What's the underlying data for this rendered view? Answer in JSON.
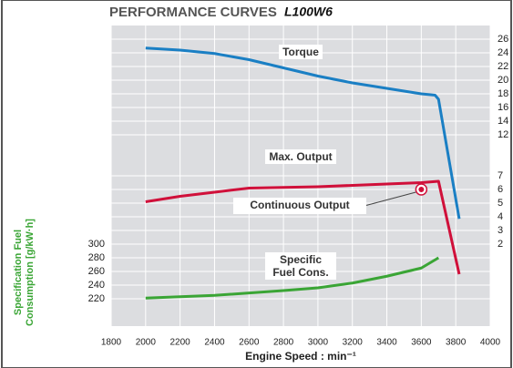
{
  "chart_data": {
    "type": "line",
    "title": "PERFORMANCE CURVES",
    "subtitle": "L100W6",
    "xlabel": "Engine Speed : min⁻¹",
    "ylabel": "Specification Fuel Consumption [g/kW·h]",
    "xlim": [
      1800,
      4000
    ],
    "xticks": [
      1800,
      2000,
      2200,
      2400,
      2600,
      2800,
      3000,
      3200,
      3400,
      3600,
      3800,
      4000
    ],
    "ylim": [
      180,
      620
    ],
    "yticks": [
      220,
      240,
      260,
      280,
      300
    ],
    "y2lim": [
      -4,
      18
    ],
    "y2ticks": [
      2,
      3,
      4,
      5,
      6,
      7
    ],
    "y3lim": [
      -16,
      28
    ],
    "y3ticks": [
      12,
      14,
      16,
      18,
      20,
      22,
      24,
      26
    ],
    "grid": true,
    "series": [
      {
        "name": "Torque",
        "color": "#1a7fc4",
        "axis": "y3",
        "x": [
          2000,
          2200,
          2400,
          2600,
          2800,
          3000,
          3200,
          3400,
          3600,
          3680,
          3700,
          3820
        ],
        "values": [
          24.7,
          24.4,
          23.9,
          23.0,
          21.8,
          20.6,
          19.6,
          18.8,
          18.0,
          17.8,
          17.2,
          -0.3
        ]
      },
      {
        "name": "Max. Output",
        "color": "#d0103a",
        "axis": "y2",
        "x": [
          2000,
          2200,
          2400,
          2600,
          3000,
          3400,
          3600,
          3700,
          3820
        ],
        "values": [
          5.1,
          5.5,
          5.8,
          6.1,
          6.2,
          6.4,
          6.5,
          6.6,
          -0.2
        ]
      },
      {
        "name": "Specific Fuel Cons.",
        "color": "#3aa535",
        "axis": "y",
        "x": [
          2000,
          2400,
          2800,
          3000,
          3200,
          3400,
          3600,
          3700
        ],
        "values": [
          221,
          225,
          232,
          236,
          243,
          253,
          265,
          280
        ]
      }
    ],
    "annotations": [
      {
        "text": "Continuous Output",
        "x": 3600,
        "value": 6.0,
        "axis": "y2"
      }
    ]
  }
}
